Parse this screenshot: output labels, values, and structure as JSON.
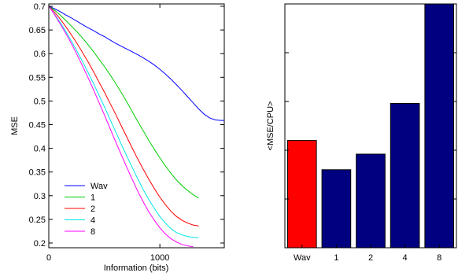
{
  "chart_data": [
    {
      "type": "line",
      "title": "",
      "xlabel": "Information (bits)",
      "ylabel": "MSE",
      "xlim": [
        0,
        1580
      ],
      "ylim": [
        0.19,
        0.705
      ],
      "xticks": [
        0,
        1000
      ],
      "xtick_labels": [
        "0",
        "1000"
      ],
      "yticks": [
        0.2,
        0.25,
        0.3,
        0.35,
        0.4,
        0.45,
        0.5,
        0.55,
        0.6,
        0.65,
        0.7
      ],
      "ytick_labels": [
        "0.2",
        "0.25",
        "0.3",
        "0.35",
        "0.4",
        "0.45",
        "0.5",
        "0.55",
        "0.6",
        "0.65",
        "0.7"
      ],
      "grid": false,
      "legend_position": "lower-left",
      "series": [
        {
          "name": "Wav",
          "color": "#0000ff",
          "x": [
            0,
            50,
            100,
            150,
            200,
            250,
            300,
            350,
            400,
            450,
            500,
            550,
            600,
            650,
            700,
            750,
            800,
            850,
            900,
            950,
            1000,
            1050,
            1100,
            1150,
            1200,
            1250,
            1300,
            1350,
            1400,
            1450,
            1500,
            1550,
            1580
          ],
          "y": [
            0.7,
            0.695,
            0.689,
            0.682,
            0.676,
            0.669,
            0.662,
            0.655,
            0.649,
            0.642,
            0.636,
            0.629,
            0.622,
            0.616,
            0.61,
            0.604,
            0.598,
            0.591,
            0.584,
            0.576,
            0.567,
            0.557,
            0.546,
            0.534,
            0.522,
            0.509,
            0.496,
            0.483,
            0.472,
            0.464,
            0.46,
            0.459,
            0.459
          ]
        },
        {
          "name": "1",
          "color": "#00cc00",
          "x": [
            0,
            50,
            100,
            150,
            200,
            250,
            300,
            350,
            400,
            450,
            500,
            550,
            600,
            650,
            700,
            750,
            800,
            850,
            900,
            950,
            1000,
            1050,
            1100,
            1150,
            1200,
            1250,
            1300,
            1350
          ],
          "y": [
            0.7,
            0.692,
            0.682,
            0.671,
            0.659,
            0.647,
            0.634,
            0.62,
            0.605,
            0.589,
            0.573,
            0.556,
            0.538,
            0.519,
            0.499,
            0.478,
            0.457,
            0.437,
            0.417,
            0.398,
            0.38,
            0.363,
            0.347,
            0.333,
            0.321,
            0.311,
            0.302,
            0.295
          ]
        },
        {
          "name": "2",
          "color": "#ff0000",
          "x": [
            0,
            50,
            100,
            150,
            200,
            250,
            300,
            350,
            400,
            450,
            500,
            550,
            600,
            650,
            700,
            750,
            800,
            850,
            900,
            950,
            1000,
            1050,
            1100,
            1150,
            1200,
            1250,
            1300,
            1350
          ],
          "y": [
            0.7,
            0.688,
            0.674,
            0.658,
            0.641,
            0.623,
            0.604,
            0.584,
            0.563,
            0.541,
            0.519,
            0.496,
            0.473,
            0.449,
            0.425,
            0.401,
            0.378,
            0.356,
            0.335,
            0.315,
            0.297,
            0.281,
            0.267,
            0.256,
            0.248,
            0.242,
            0.238,
            0.236
          ]
        },
        {
          "name": "4",
          "color": "#00e5e5",
          "x": [
            0,
            50,
            100,
            150,
            200,
            250,
            300,
            350,
            400,
            450,
            500,
            550,
            600,
            650,
            700,
            750,
            800,
            850,
            900,
            950,
            1000,
            1050,
            1100,
            1150,
            1200,
            1250,
            1300,
            1350
          ],
          "y": [
            0.7,
            0.684,
            0.667,
            0.648,
            0.628,
            0.607,
            0.585,
            0.562,
            0.538,
            0.513,
            0.488,
            0.462,
            0.436,
            0.41,
            0.385,
            0.36,
            0.336,
            0.313,
            0.292,
            0.273,
            0.256,
            0.242,
            0.23,
            0.222,
            0.217,
            0.214,
            0.212,
            0.211
          ]
        },
        {
          "name": "8",
          "color": "#ff00ff",
          "x": [
            0,
            50,
            100,
            150,
            200,
            250,
            300,
            350,
            400,
            450,
            500,
            550,
            600,
            650,
            700,
            750,
            800,
            850,
            900,
            950,
            1000,
            1050,
            1100,
            1150,
            1200,
            1250,
            1300
          ],
          "y": [
            0.7,
            0.683,
            0.664,
            0.644,
            0.623,
            0.6,
            0.576,
            0.551,
            0.525,
            0.498,
            0.471,
            0.443,
            0.415,
            0.388,
            0.361,
            0.335,
            0.31,
            0.287,
            0.266,
            0.248,
            0.232,
            0.219,
            0.209,
            0.202,
            0.197,
            0.194,
            0.192
          ]
        }
      ]
    },
    {
      "type": "bar",
      "title": "",
      "xlabel": "",
      "ylabel": "<MSE/CPU>",
      "categories": [
        "Wav",
        "1",
        "2",
        "4",
        "8"
      ],
      "values": [
        0.55,
        0.4,
        0.48,
        0.74,
        1.25
      ],
      "colors": [
        "#ff0000",
        "#000080",
        "#000080",
        "#000080",
        "#000080"
      ],
      "ylim": [
        0,
        1.25
      ],
      "yticks": [
        0.25,
        0.5,
        0.75,
        1.0
      ],
      "ytick_labels_shown": false,
      "grid": false
    }
  ]
}
